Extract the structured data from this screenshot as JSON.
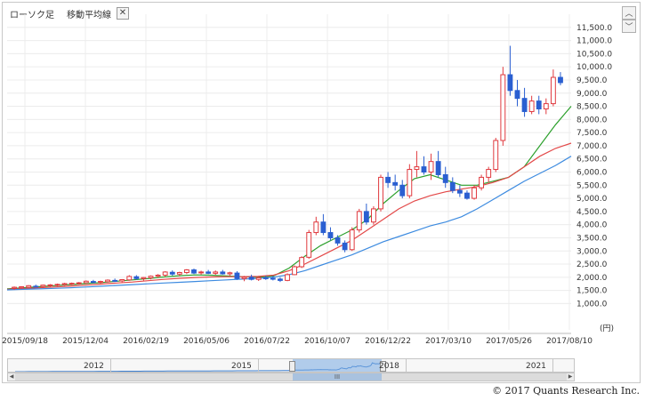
{
  "tabs": {
    "candlestick": "ローソク足",
    "moving_average": "移動平均線",
    "close_label": "✕"
  },
  "controls": {
    "up": "︿",
    "down": "﹀"
  },
  "colors": {
    "up": "#e0393e",
    "down": "#2a5fd1",
    "ma_short": "#2ca02c",
    "ma_mid": "#e34848",
    "ma_long": "#3d8be0"
  },
  "chart_data": {
    "type": "candlestick",
    "title": "",
    "ylabel": "(円)",
    "ylim": [
      0,
      12000
    ],
    "y_ticks": [
      1000,
      1500,
      2000,
      2500,
      3000,
      3500,
      4000,
      4500,
      5000,
      5500,
      6000,
      6500,
      7000,
      7500,
      8000,
      8500,
      9000,
      9500,
      10000,
      10500,
      11000,
      11500
    ],
    "y_tick_labels": [
      "1,000.0",
      "1,500.0",
      "2,000.0",
      "2,500.0",
      "3,000.0",
      "3,500.0",
      "4,000.0",
      "4,500.0",
      "5,000.0",
      "5,500.0",
      "6,000.0",
      "6,500.0",
      "7,000.0",
      "7,500.0",
      "8,000.0",
      "8,500.0",
      "9,000.0",
      "9,500.0",
      "10,000.0",
      "10,500.0",
      "11,000.0",
      "11,500.0"
    ],
    "x_tick_labels": [
      "2015/09/18",
      "2015/12/04",
      "2016/02/19",
      "2016/05/06",
      "2016/07/22",
      "2016/10/07",
      "2016/12/22",
      "2017/03/10",
      "2017/05/26",
      "2017/08/10"
    ],
    "candles": [
      {
        "o": 1580,
        "h": 1650,
        "l": 1520,
        "c": 1620
      },
      {
        "o": 1600,
        "h": 1660,
        "l": 1560,
        "c": 1640
      },
      {
        "o": 1620,
        "h": 1700,
        "l": 1590,
        "c": 1680
      },
      {
        "o": 1660,
        "h": 1720,
        "l": 1620,
        "c": 1640
      },
      {
        "o": 1650,
        "h": 1720,
        "l": 1610,
        "c": 1700
      },
      {
        "o": 1690,
        "h": 1740,
        "l": 1640,
        "c": 1710
      },
      {
        "o": 1700,
        "h": 1760,
        "l": 1660,
        "c": 1730
      },
      {
        "o": 1720,
        "h": 1790,
        "l": 1680,
        "c": 1760
      },
      {
        "o": 1750,
        "h": 1800,
        "l": 1700,
        "c": 1770
      },
      {
        "o": 1770,
        "h": 1820,
        "l": 1720,
        "c": 1790
      },
      {
        "o": 1790,
        "h": 1880,
        "l": 1750,
        "c": 1850
      },
      {
        "o": 1840,
        "h": 1900,
        "l": 1780,
        "c": 1800
      },
      {
        "o": 1810,
        "h": 1870,
        "l": 1760,
        "c": 1840
      },
      {
        "o": 1830,
        "h": 1920,
        "l": 1800,
        "c": 1890
      },
      {
        "o": 1880,
        "h": 1950,
        "l": 1820,
        "c": 1860
      },
      {
        "o": 1860,
        "h": 1930,
        "l": 1810,
        "c": 1910
      },
      {
        "o": 1900,
        "h": 2080,
        "l": 1870,
        "c": 2030
      },
      {
        "o": 2020,
        "h": 2080,
        "l": 1900,
        "c": 1950
      },
      {
        "o": 1950,
        "h": 2010,
        "l": 1870,
        "c": 1990
      },
      {
        "o": 1980,
        "h": 2070,
        "l": 1920,
        "c": 2040
      },
      {
        "o": 2040,
        "h": 2120,
        "l": 1980,
        "c": 2080
      },
      {
        "o": 2080,
        "h": 2230,
        "l": 2020,
        "c": 2200
      },
      {
        "o": 2190,
        "h": 2260,
        "l": 2060,
        "c": 2120
      },
      {
        "o": 2120,
        "h": 2210,
        "l": 2040,
        "c": 2180
      },
      {
        "o": 2180,
        "h": 2310,
        "l": 2120,
        "c": 2280
      },
      {
        "o": 2280,
        "h": 2330,
        "l": 2120,
        "c": 2160
      },
      {
        "o": 2170,
        "h": 2250,
        "l": 2100,
        "c": 2200
      },
      {
        "o": 2200,
        "h": 2280,
        "l": 2120,
        "c": 2150
      },
      {
        "o": 2150,
        "h": 2260,
        "l": 2090,
        "c": 2200
      },
      {
        "o": 2200,
        "h": 2280,
        "l": 2100,
        "c": 2130
      },
      {
        "o": 2130,
        "h": 2210,
        "l": 2060,
        "c": 2170
      },
      {
        "o": 2160,
        "h": 2230,
        "l": 1900,
        "c": 1950
      },
      {
        "o": 1950,
        "h": 2050,
        "l": 1850,
        "c": 2000
      },
      {
        "o": 2000,
        "h": 2100,
        "l": 1880,
        "c": 1920
      },
      {
        "o": 1920,
        "h": 2020,
        "l": 1860,
        "c": 1980
      },
      {
        "o": 1980,
        "h": 2060,
        "l": 1900,
        "c": 1960
      },
      {
        "o": 1960,
        "h": 2050,
        "l": 1880,
        "c": 1930
      },
      {
        "o": 1930,
        "h": 2000,
        "l": 1820,
        "c": 1880
      },
      {
        "o": 1880,
        "h": 2150,
        "l": 1850,
        "c": 2100
      },
      {
        "o": 2100,
        "h": 2450,
        "l": 2080,
        "c": 2400
      },
      {
        "o": 2400,
        "h": 2800,
        "l": 2350,
        "c": 2750
      },
      {
        "o": 2760,
        "h": 3800,
        "l": 2700,
        "c": 3700
      },
      {
        "o": 3700,
        "h": 4300,
        "l": 3600,
        "c": 4100
      },
      {
        "o": 4100,
        "h": 4400,
        "l": 3600,
        "c": 3700
      },
      {
        "o": 3700,
        "h": 3900,
        "l": 3400,
        "c": 3500
      },
      {
        "o": 3500,
        "h": 3600,
        "l": 3200,
        "c": 3300
      },
      {
        "o": 3300,
        "h": 3400,
        "l": 2950,
        "c": 3050
      },
      {
        "o": 3050,
        "h": 3900,
        "l": 3000,
        "c": 3800
      },
      {
        "o": 3800,
        "h": 4600,
        "l": 3700,
        "c": 4500
      },
      {
        "o": 4500,
        "h": 4800,
        "l": 4000,
        "c": 4100
      },
      {
        "o": 4100,
        "h": 4700,
        "l": 4000,
        "c": 4600
      },
      {
        "o": 4600,
        "h": 5900,
        "l": 4500,
        "c": 5800
      },
      {
        "o": 5800,
        "h": 6000,
        "l": 5400,
        "c": 5600
      },
      {
        "o": 5600,
        "h": 5900,
        "l": 5300,
        "c": 5500
      },
      {
        "o": 5500,
        "h": 5700,
        "l": 5000,
        "c": 5100
      },
      {
        "o": 5100,
        "h": 6300,
        "l": 5000,
        "c": 6100
      },
      {
        "o": 6100,
        "h": 6800,
        "l": 5800,
        "c": 6200
      },
      {
        "o": 6200,
        "h": 6600,
        "l": 5900,
        "c": 6000
      },
      {
        "o": 6000,
        "h": 6700,
        "l": 5700,
        "c": 6400
      },
      {
        "o": 6400,
        "h": 6800,
        "l": 5800,
        "c": 5900
      },
      {
        "o": 5900,
        "h": 6200,
        "l": 5400,
        "c": 5600
      },
      {
        "o": 5600,
        "h": 5800,
        "l": 5200,
        "c": 5300
      },
      {
        "o": 5300,
        "h": 5500,
        "l": 5050,
        "c": 5200
      },
      {
        "o": 5200,
        "h": 5300,
        "l": 4950,
        "c": 5000
      },
      {
        "o": 5000,
        "h": 5500,
        "l": 4950,
        "c": 5400
      },
      {
        "o": 5400,
        "h": 5900,
        "l": 5300,
        "c": 5800
      },
      {
        "o": 5800,
        "h": 6200,
        "l": 5600,
        "c": 6100
      },
      {
        "o": 6100,
        "h": 7300,
        "l": 6000,
        "c": 7200
      },
      {
        "o": 7200,
        "h": 10000,
        "l": 7000,
        "c": 9700
      },
      {
        "o": 9700,
        "h": 10800,
        "l": 8900,
        "c": 9100
      },
      {
        "o": 9100,
        "h": 9500,
        "l": 8500,
        "c": 8800
      },
      {
        "o": 8800,
        "h": 9200,
        "l": 8100,
        "c": 8300
      },
      {
        "o": 8300,
        "h": 8900,
        "l": 8200,
        "c": 8700
      },
      {
        "o": 8700,
        "h": 8900,
        "l": 8200,
        "c": 8400
      },
      {
        "o": 8400,
        "h": 8800,
        "l": 8200,
        "c": 8600
      },
      {
        "o": 8600,
        "h": 9900,
        "l": 8500,
        "c": 9600
      },
      {
        "o": 9600,
        "h": 9800,
        "l": 9300,
        "c": 9400
      }
    ],
    "series": [
      {
        "name": "ma_short",
        "values": [
          1560,
          1600,
          1640,
          1680,
          1720,
          1760,
          1800,
          1850,
          1900,
          1950,
          2010,
          2060,
          2090,
          2080,
          2050,
          2020,
          2000,
          2050,
          2350,
          2800,
          3200,
          3500,
          3800,
          4200,
          4800,
          5300,
          5750,
          5900,
          5700,
          5500,
          5500,
          5650,
          5800,
          6200,
          7000,
          7800,
          8500
        ]
      },
      {
        "name": "ma_mid",
        "values": [
          1540,
          1570,
          1600,
          1630,
          1660,
          1700,
          1740,
          1780,
          1820,
          1870,
          1920,
          1960,
          1990,
          2010,
          2020,
          2020,
          2030,
          2080,
          2250,
          2500,
          2800,
          3100,
          3400,
          3800,
          4200,
          4600,
          4900,
          5100,
          5250,
          5350,
          5450,
          5600,
          5800,
          6200,
          6600,
          6900,
          7100
        ]
      },
      {
        "name": "ma_long",
        "values": [
          1520,
          1540,
          1560,
          1580,
          1600,
          1630,
          1660,
          1690,
          1720,
          1750,
          1780,
          1810,
          1840,
          1870,
          1900,
          1930,
          1960,
          2000,
          2100,
          2250,
          2450,
          2650,
          2850,
          3100,
          3350,
          3550,
          3750,
          3950,
          4100,
          4300,
          4600,
          4950,
          5300,
          5650,
          5950,
          6250,
          6600
        ]
      }
    ]
  },
  "navigator": {
    "years": [
      "2012",
      "2015",
      "2018",
      "2021"
    ],
    "thumb_label": "III"
  },
  "copyright": "© 2017 Quants Research Inc."
}
